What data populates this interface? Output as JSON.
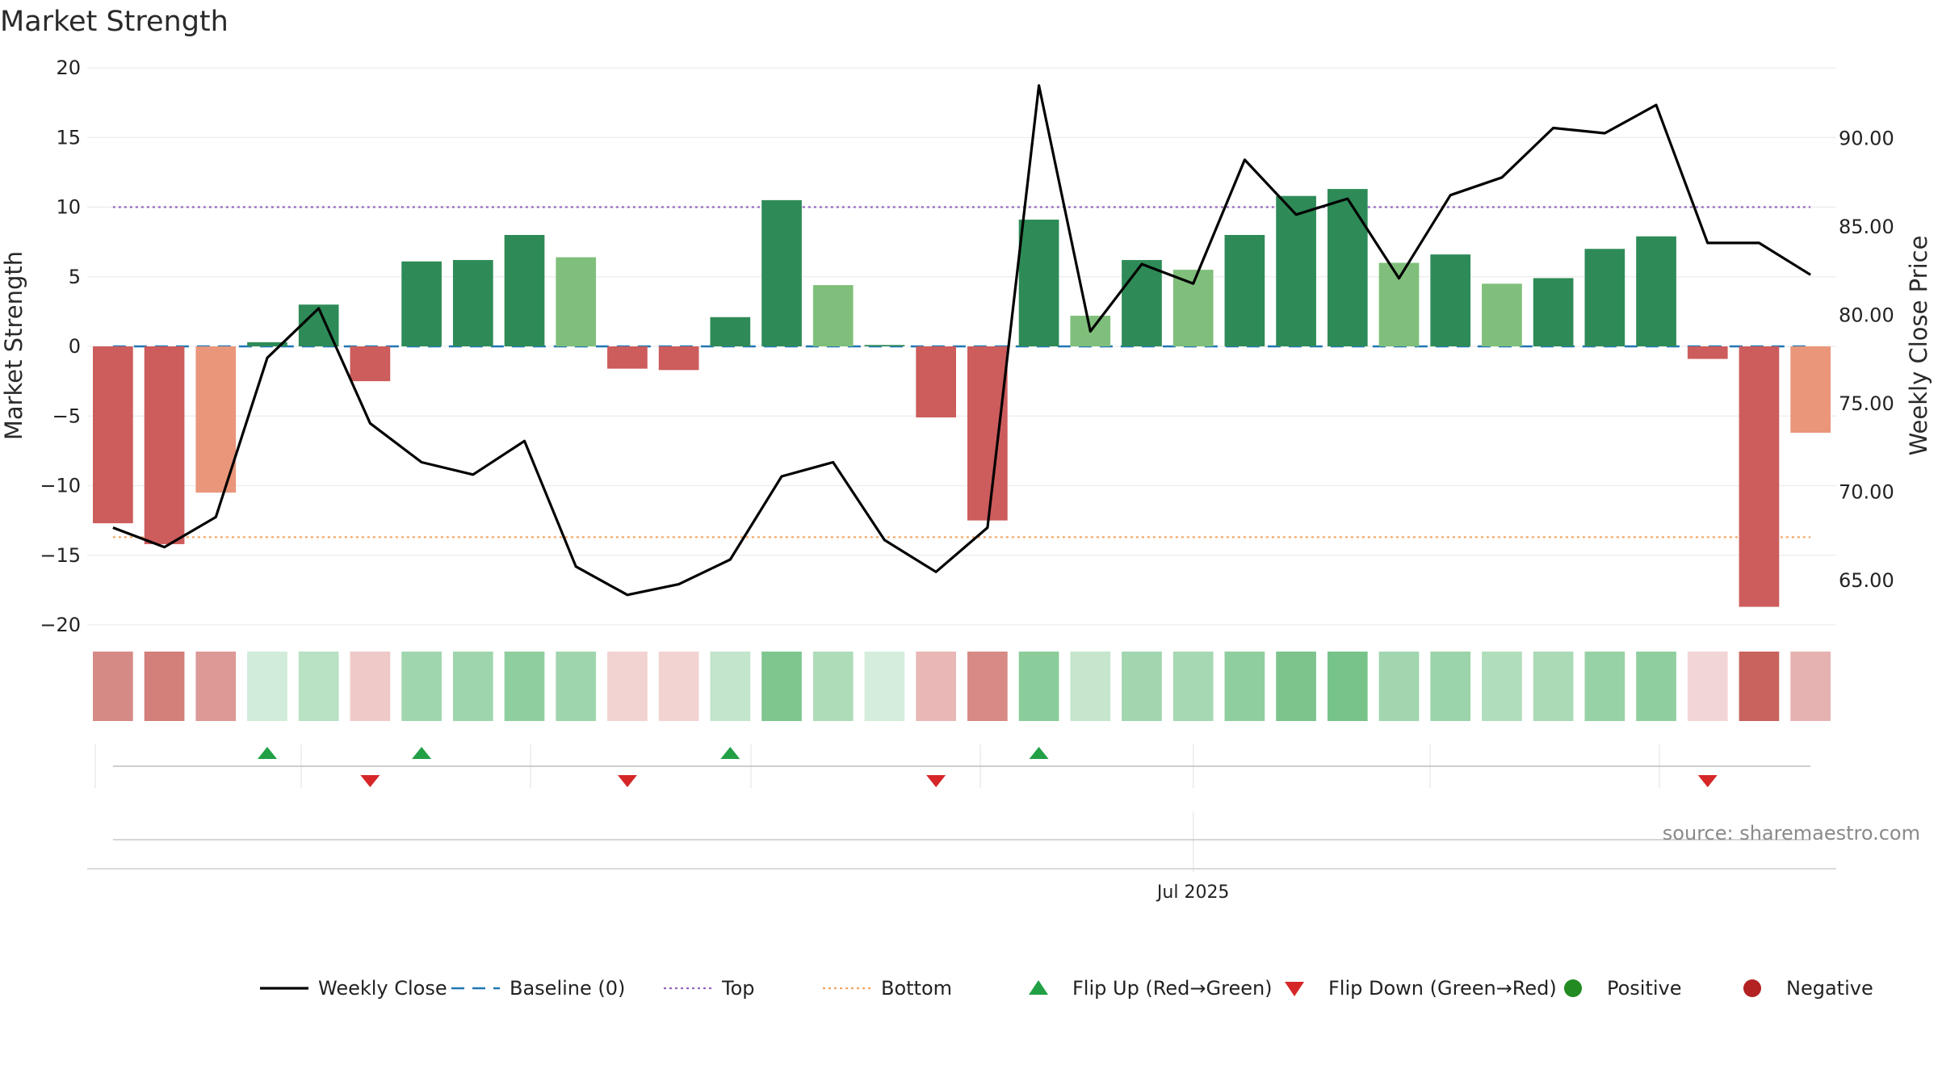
{
  "source_text": "source: sharemaestro.com",
  "chart_data": {
    "type": "bar",
    "title": "Market Strength",
    "ylabel": "Market Strength",
    "y2label": "Weekly Close Price",
    "ylim": [
      -20,
      20
    ],
    "y2lim": [
      62.5,
      94
    ],
    "yticks": [
      -20,
      -15,
      -10,
      -5,
      0,
      5,
      10,
      15,
      20
    ],
    "y2ticks": [
      65,
      70,
      75,
      80,
      85,
      90
    ],
    "y2tick_labels": [
      "65.00",
      "70.00",
      "75.00",
      "80.00",
      "85.00",
      "90.00"
    ],
    "x_tick_label": "Jul 2025",
    "x_tick_index": 21,
    "top_line": 10,
    "bottom_line": -13.7,
    "strength": [
      -12.7,
      -14.2,
      -10.5,
      0.3,
      3.0,
      -2.5,
      6.1,
      6.2,
      8.0,
      6.4,
      -1.6,
      -1.7,
      2.1,
      10.5,
      4.4,
      0.1,
      -5.1,
      -12.5,
      9.1,
      2.2,
      6.2,
      5.5,
      8.0,
      10.8,
      11.3,
      6.0,
      6.6,
      4.5,
      4.9,
      7.0,
      7.9,
      -0.9,
      -18.7,
      -6.2
    ],
    "weekly_close": [
      68.0,
      66.9,
      68.6,
      77.6,
      80.4,
      73.9,
      71.7,
      71.0,
      72.9,
      65.8,
      64.2,
      64.8,
      66.2,
      70.9,
      71.7,
      67.3,
      65.5,
      68.0,
      93.0,
      79.1,
      82.9,
      81.8,
      88.8,
      85.7,
      86.6,
      82.1,
      86.8,
      87.8,
      90.6,
      90.3,
      91.9,
      84.1,
      84.1,
      82.3
    ],
    "bar_colors": [
      "#cd5c5c",
      "#cd5c5c",
      "#e9967a",
      "#2e8b57",
      "#2e8b57",
      "#cd5c5c",
      "#2e8b57",
      "#2e8b57",
      "#2e8b57",
      "#7fbf7b",
      "#cd5c5c",
      "#cd5c5c",
      "#2e8b57",
      "#2e8b57",
      "#7fbf7b",
      "#2e8b57",
      "#cd5c5c",
      "#cd5c5c",
      "#2e8b57",
      "#7fbf7b",
      "#2e8b57",
      "#7fbf7b",
      "#2e8b57",
      "#2e8b57",
      "#2e8b57",
      "#7fbf7b",
      "#2e8b57",
      "#7fbf7b",
      "#2e8b57",
      "#2e8b57",
      "#2e8b57",
      "#cd5c5c",
      "#cd5c5c",
      "#e9967a"
    ],
    "strip_colors": [
      "#d68a86",
      "#d37f7a",
      "#dc9996",
      "#d1ecd9",
      "#b9e1c4",
      "#efc9c8",
      "#a0d6ae",
      "#9fd5ad",
      "#8fcf9f",
      "#9fd5ad",
      "#f2d3d2",
      "#f2d3d2",
      "#c2e5cb",
      "#7ec68e",
      "#aedcb9",
      "#d4eedb",
      "#e9b7b5",
      "#d78a86",
      "#8acd9b",
      "#c5e6cd",
      "#a1d6af",
      "#a6d8b3",
      "#8fcf9f",
      "#7cc48c",
      "#78c38a",
      "#a1d6af",
      "#9bd4aa",
      "#b0ddbb",
      "#abdab7",
      "#97d2a6",
      "#8fcf9f",
      "#f2d6d5",
      "#c9635d",
      "#e6b2b1"
    ],
    "flip_up_indices": [
      3,
      6,
      12,
      18
    ],
    "flip_down_indices": [
      5,
      10,
      16,
      31
    ],
    "colors": {
      "weekly_close": "#000000",
      "baseline": "#1f77b4",
      "top": "#9467bd",
      "bottom": "#f4a460",
      "flip_up": "#22a045",
      "flip_down": "#d62728",
      "positive": "#228b22",
      "negative": "#b22222"
    },
    "legend": [
      {
        "label": "Weekly Close",
        "marker": "line"
      },
      {
        "label": "Baseline (0)",
        "marker": "dash"
      },
      {
        "label": "Top",
        "marker": "dot"
      },
      {
        "label": "Bottom",
        "marker": "dot-orange"
      },
      {
        "label": "Flip Up (Red→Green)",
        "marker": "triangle-up"
      },
      {
        "label": "Flip Down (Green→Red)",
        "marker": "triangle-down"
      },
      {
        "label": "Positive",
        "marker": "circle-green"
      },
      {
        "label": "Negative",
        "marker": "circle-red"
      }
    ],
    "legend_position": "bottom"
  }
}
